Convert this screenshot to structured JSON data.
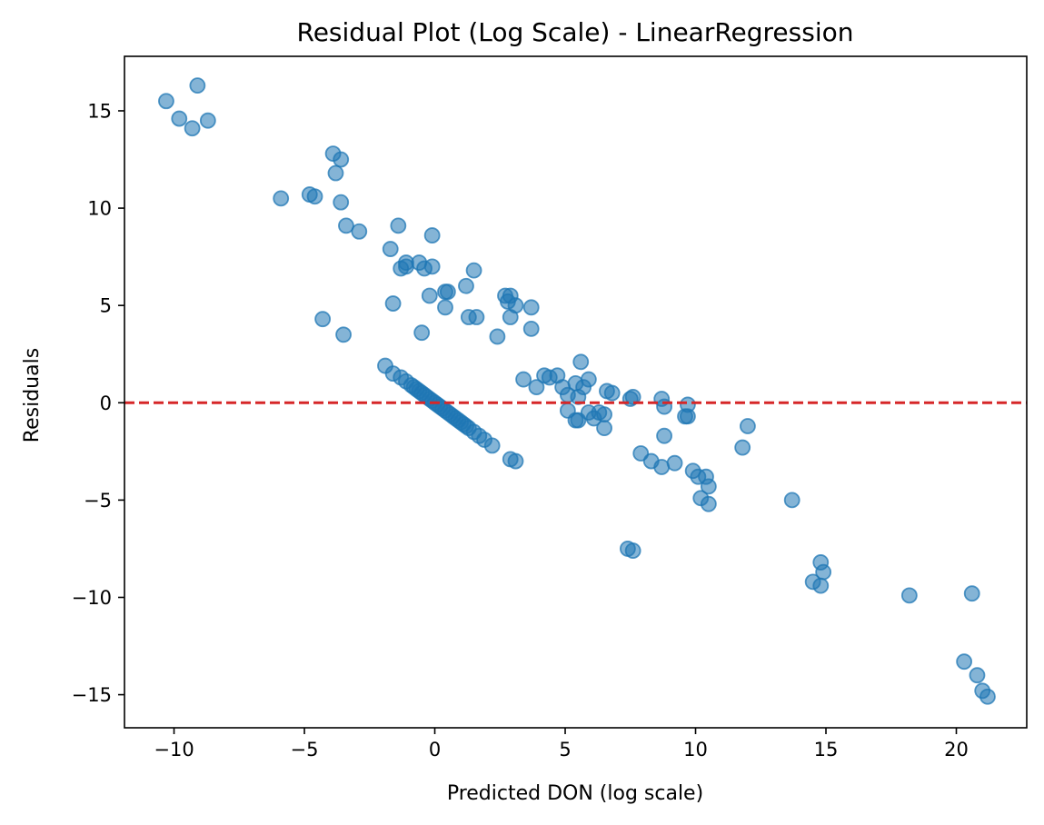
{
  "chart_data": {
    "type": "scatter",
    "title": "Residual Plot (Log Scale) - LinearRegression",
    "xlabel": "Predicted DON (log scale)",
    "ylabel": "Residuals",
    "xlim": [
      -11.9,
      22.7
    ],
    "ylim": [
      -16.7,
      17.8
    ],
    "x_ticks": [
      -10,
      -5,
      0,
      5,
      10,
      15,
      20
    ],
    "x_tick_labels": [
      "−10",
      "−5",
      "0",
      "5",
      "10",
      "15",
      "20"
    ],
    "y_ticks": [
      -15,
      -10,
      -5,
      0,
      5,
      10,
      15
    ],
    "y_tick_labels": [
      "−15",
      "−10",
      "−5",
      "0",
      "5",
      "10",
      "15"
    ],
    "grid": false,
    "point_color": "#1f77b4",
    "point_alpha": 0.55,
    "reference_line": {
      "y": 0,
      "color": "#d62728",
      "style": "dashed"
    },
    "points": [
      [
        -10.3,
        15.5
      ],
      [
        -9.8,
        14.6
      ],
      [
        -9.3,
        14.1
      ],
      [
        -9.1,
        16.3
      ],
      [
        -8.7,
        14.5
      ],
      [
        -5.9,
        10.5
      ],
      [
        -4.8,
        10.7
      ],
      [
        -4.6,
        10.6
      ],
      [
        -3.9,
        12.8
      ],
      [
        -3.8,
        11.8
      ],
      [
        -3.6,
        12.5
      ],
      [
        -3.6,
        10.3
      ],
      [
        -3.4,
        9.1
      ],
      [
        -2.9,
        8.8
      ],
      [
        -1.7,
        7.9
      ],
      [
        -1.4,
        9.1
      ],
      [
        -1.3,
        6.9
      ],
      [
        -1.1,
        7.2
      ],
      [
        -1.1,
        7.0
      ],
      [
        -0.6,
        7.2
      ],
      [
        -0.4,
        6.9
      ],
      [
        -0.1,
        8.6
      ],
      [
        -0.1,
        7.0
      ],
      [
        -0.2,
        5.5
      ],
      [
        0.4,
        5.7
      ],
      [
        0.5,
        5.7
      ],
      [
        0.4,
        4.9
      ],
      [
        1.2,
        6.0
      ],
      [
        1.5,
        6.8
      ],
      [
        1.3,
        4.4
      ],
      [
        1.6,
        4.4
      ],
      [
        2.4,
        3.4
      ],
      [
        2.7,
        5.5
      ],
      [
        2.8,
        5.2
      ],
      [
        2.9,
        5.5
      ],
      [
        2.9,
        4.4
      ],
      [
        3.1,
        5.0
      ],
      [
        3.7,
        4.9
      ],
      [
        3.7,
        3.8
      ],
      [
        -4.3,
        4.3
      ],
      [
        -3.5,
        3.5
      ],
      [
        -1.6,
        5.1
      ],
      [
        -0.5,
        3.6
      ],
      [
        -1.9,
        1.9
      ],
      [
        -1.6,
        1.5
      ],
      [
        -1.3,
        1.3
      ],
      [
        -1.1,
        1.1
      ],
      [
        -0.9,
        0.9
      ],
      [
        -0.8,
        0.8
      ],
      [
        -0.7,
        0.7
      ],
      [
        -0.6,
        0.6
      ],
      [
        -0.5,
        0.5
      ],
      [
        -0.4,
        0.4
      ],
      [
        -0.3,
        0.3
      ],
      [
        -0.2,
        0.2
      ],
      [
        -0.1,
        0.1
      ],
      [
        0.0,
        0.0
      ],
      [
        0.1,
        -0.1
      ],
      [
        0.2,
        -0.2
      ],
      [
        0.3,
        -0.3
      ],
      [
        0.4,
        -0.4
      ],
      [
        0.5,
        -0.5
      ],
      [
        0.6,
        -0.6
      ],
      [
        0.7,
        -0.7
      ],
      [
        0.8,
        -0.8
      ],
      [
        0.9,
        -0.9
      ],
      [
        1.0,
        -1.0
      ],
      [
        1.1,
        -1.1
      ],
      [
        1.2,
        -1.2
      ],
      [
        1.3,
        -1.3
      ],
      [
        1.5,
        -1.5
      ],
      [
        1.7,
        -1.7
      ],
      [
        1.9,
        -1.9
      ],
      [
        2.2,
        -2.2
      ],
      [
        2.9,
        -2.9
      ],
      [
        3.1,
        -3.0
      ],
      [
        3.4,
        1.2
      ],
      [
        3.9,
        0.8
      ],
      [
        4.2,
        1.4
      ],
      [
        4.4,
        1.3
      ],
      [
        4.7,
        1.4
      ],
      [
        4.9,
        0.8
      ],
      [
        5.1,
        0.4
      ],
      [
        5.4,
        1.0
      ],
      [
        5.6,
        2.1
      ],
      [
        5.7,
        0.8
      ],
      [
        5.9,
        1.2
      ],
      [
        5.5,
        0.3
      ],
      [
        5.1,
        -0.4
      ],
      [
        5.9,
        -0.5
      ],
      [
        6.1,
        -0.8
      ],
      [
        6.3,
        -0.5
      ],
      [
        6.5,
        -0.6
      ],
      [
        6.5,
        -1.3
      ],
      [
        6.6,
        0.6
      ],
      [
        6.8,
        0.5
      ],
      [
        5.4,
        -0.9
      ],
      [
        5.5,
        -0.9
      ],
      [
        7.5,
        0.2
      ],
      [
        7.6,
        0.3
      ],
      [
        8.7,
        0.2
      ],
      [
        8.8,
        -0.2
      ],
      [
        9.6,
        -0.7
      ],
      [
        9.7,
        -0.7
      ],
      [
        9.7,
        -0.1
      ],
      [
        7.9,
        -2.6
      ],
      [
        8.3,
        -3.0
      ],
      [
        8.7,
        -3.3
      ],
      [
        8.8,
        -1.7
      ],
      [
        9.2,
        -3.1
      ],
      [
        9.9,
        -3.5
      ],
      [
        10.1,
        -3.8
      ],
      [
        10.4,
        -3.8
      ],
      [
        10.5,
        -4.3
      ],
      [
        10.2,
        -4.9
      ],
      [
        10.5,
        -5.2
      ],
      [
        11.8,
        -2.3
      ],
      [
        12.0,
        -1.2
      ],
      [
        13.7,
        -5.0
      ],
      [
        7.4,
        -7.5
      ],
      [
        7.6,
        -7.6
      ],
      [
        14.5,
        -9.2
      ],
      [
        14.8,
        -8.2
      ],
      [
        14.9,
        -8.7
      ],
      [
        14.8,
        -9.4
      ],
      [
        18.2,
        -9.9
      ],
      [
        20.6,
        -9.8
      ],
      [
        20.3,
        -13.3
      ],
      [
        20.8,
        -14.0
      ],
      [
        21.0,
        -14.8
      ],
      [
        21.2,
        -15.1
      ]
    ]
  }
}
